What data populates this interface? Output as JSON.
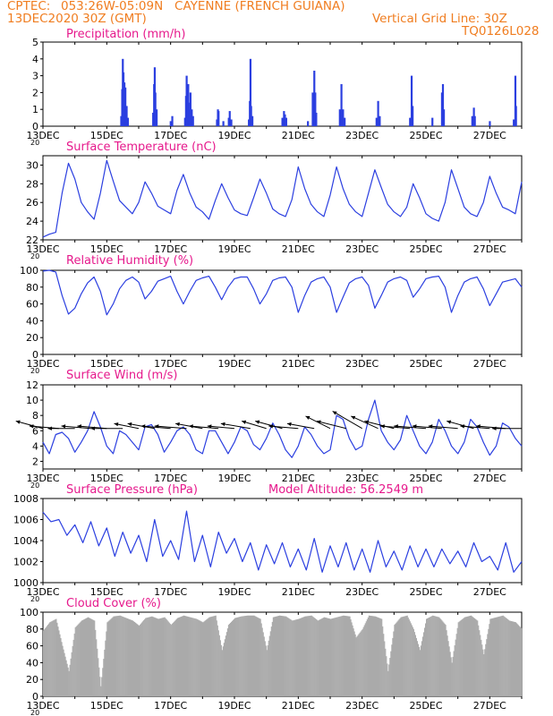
{
  "header": {
    "source": "CPTEC:",
    "location": "053:26W-05:09N   CAYENNE (FRENCH GUIANA)",
    "date": "13DEC2020 30Z (GMT)",
    "grid_note": "Vertical Grid Line: 30Z",
    "code": "TQ0126L028",
    "color": "#f07d20"
  },
  "x_axis": {
    "tick_labels": [
      "13DEC",
      "15DEC",
      "17DEC",
      "19DEC",
      "21DEC",
      "23DEC",
      "25DEC",
      "27DEC"
    ],
    "overflow_label": "20",
    "start_day": 13,
    "end_day": 28
  },
  "colors": {
    "title": "#e6198c",
    "series": "#2b3fe0",
    "cloud": "#aaaaaa"
  },
  "chart_data": [
    {
      "id": "precip",
      "type": "bar",
      "title": "Precipitation (mm/h)",
      "ylim": [
        0,
        5
      ],
      "yticks": [
        0,
        1,
        2,
        3,
        4,
        5
      ],
      "bars": [
        [
          15.45,
          0.6
        ],
        [
          15.48,
          2.2
        ],
        [
          15.5,
          4.0
        ],
        [
          15.52,
          3.2
        ],
        [
          15.55,
          2.6
        ],
        [
          15.58,
          2.3
        ],
        [
          15.62,
          1.2
        ],
        [
          15.66,
          0.5
        ],
        [
          16.45,
          0.8
        ],
        [
          16.48,
          2.5
        ],
        [
          16.5,
          3.5
        ],
        [
          16.52,
          2.0
        ],
        [
          16.56,
          1.0
        ],
        [
          17.0,
          0.3
        ],
        [
          17.05,
          0.6
        ],
        [
          17.45,
          0.5
        ],
        [
          17.48,
          1.8
        ],
        [
          17.5,
          3.0
        ],
        [
          17.52,
          2.2
        ],
        [
          17.55,
          2.5
        ],
        [
          17.58,
          1.4
        ],
        [
          17.62,
          2.0
        ],
        [
          17.66,
          1.0
        ],
        [
          17.7,
          0.6
        ],
        [
          18.45,
          0.4
        ],
        [
          18.48,
          1.0
        ],
        [
          18.5,
          0.9
        ],
        [
          18.65,
          0.3
        ],
        [
          18.82,
          0.5
        ],
        [
          18.85,
          0.9
        ],
        [
          18.9,
          0.4
        ],
        [
          19.45,
          0.4
        ],
        [
          19.48,
          1.5
        ],
        [
          19.5,
          4.0
        ],
        [
          19.52,
          1.2
        ],
        [
          19.56,
          0.6
        ],
        [
          20.5,
          0.5
        ],
        [
          20.55,
          0.9
        ],
        [
          20.58,
          0.7
        ],
        [
          20.62,
          0.5
        ],
        [
          21.3,
          0.3
        ],
        [
          21.45,
          2.0
        ],
        [
          21.5,
          3.3
        ],
        [
          21.53,
          2.0
        ],
        [
          21.56,
          0.8
        ],
        [
          22.3,
          1.0
        ],
        [
          22.35,
          2.5
        ],
        [
          22.4,
          1.0
        ],
        [
          22.45,
          0.5
        ],
        [
          23.45,
          0.5
        ],
        [
          23.5,
          1.5
        ],
        [
          23.55,
          0.6
        ],
        [
          24.5,
          0.5
        ],
        [
          24.55,
          3.0
        ],
        [
          24.58,
          1.2
        ],
        [
          25.2,
          0.5
        ],
        [
          25.5,
          2.0
        ],
        [
          25.53,
          2.5
        ],
        [
          25.56,
          1.0
        ],
        [
          26.45,
          0.6
        ],
        [
          26.5,
          1.1
        ],
        [
          26.53,
          0.6
        ],
        [
          27.0,
          0.3
        ],
        [
          27.75,
          0.4
        ],
        [
          27.8,
          3.0
        ],
        [
          27.82,
          1.2
        ]
      ]
    },
    {
      "id": "temperature",
      "type": "line",
      "title": "Surface Temperature (nC)",
      "ylim": [
        22,
        31
      ],
      "yticks": [
        22,
        24,
        26,
        28,
        30
      ],
      "x": [
        13.0,
        13.2,
        13.4,
        13.6,
        13.8,
        14.0,
        14.2,
        14.4,
        14.6,
        14.8,
        15.0,
        15.2,
        15.4,
        15.6,
        15.8,
        16.0,
        16.2,
        16.4,
        16.6,
        16.8,
        17.0,
        17.2,
        17.4,
        17.6,
        17.8,
        18.0,
        18.2,
        18.4,
        18.6,
        18.8,
        19.0,
        19.2,
        19.4,
        19.6,
        19.8,
        20.0,
        20.2,
        20.4,
        20.6,
        20.8,
        21.0,
        21.2,
        21.4,
        21.6,
        21.8,
        22.0,
        22.2,
        22.4,
        22.6,
        22.8,
        23.0,
        23.2,
        23.4,
        23.6,
        23.8,
        24.0,
        24.2,
        24.4,
        24.6,
        24.8,
        25.0,
        25.2,
        25.4,
        25.6,
        25.8,
        26.0,
        26.2,
        26.4,
        26.6,
        26.8,
        27.0,
        27.2,
        27.4,
        27.6,
        27.8,
        28.0
      ],
      "y": [
        22.3,
        22.6,
        22.8,
        27.0,
        30.2,
        28.5,
        26.0,
        25.0,
        24.2,
        27.0,
        30.5,
        28.3,
        26.2,
        25.5,
        24.8,
        26.0,
        28.2,
        27.0,
        25.6,
        25.2,
        24.8,
        27.3,
        29.0,
        27.0,
        25.5,
        25.0,
        24.2,
        26.2,
        28.0,
        26.5,
        25.2,
        24.8,
        24.6,
        26.5,
        28.5,
        27.0,
        25.3,
        24.8,
        24.5,
        26.3,
        29.8,
        27.5,
        25.8,
        25.0,
        24.5,
        26.8,
        29.8,
        27.5,
        25.8,
        25.0,
        24.5,
        27.0,
        29.5,
        27.6,
        25.8,
        25.0,
        24.5,
        25.5,
        28.0,
        26.5,
        24.8,
        24.3,
        24.0,
        26.0,
        29.5,
        27.5,
        25.5,
        24.8,
        24.5,
        26.0,
        28.8,
        27.0,
        25.5,
        25.2,
        24.8,
        28.2
      ]
    },
    {
      "id": "humidity",
      "type": "line",
      "title": "Relative Humidity (%)",
      "ylim": [
        0,
        100
      ],
      "yticks": [
        0,
        20,
        40,
        60,
        80,
        100
      ],
      "x": [
        13.0,
        13.2,
        13.4,
        13.6,
        13.8,
        14.0,
        14.2,
        14.4,
        14.6,
        14.8,
        15.0,
        15.2,
        15.4,
        15.6,
        15.8,
        16.0,
        16.2,
        16.4,
        16.6,
        16.8,
        17.0,
        17.2,
        17.4,
        17.6,
        17.8,
        18.0,
        18.2,
        18.4,
        18.6,
        18.8,
        19.0,
        19.2,
        19.4,
        19.6,
        19.8,
        20.0,
        20.2,
        20.4,
        20.6,
        20.8,
        21.0,
        21.2,
        21.4,
        21.6,
        21.8,
        22.0,
        22.2,
        22.4,
        22.6,
        22.8,
        23.0,
        23.2,
        23.4,
        23.6,
        23.8,
        24.0,
        24.2,
        24.4,
        24.6,
        24.8,
        25.0,
        25.2,
        25.4,
        25.6,
        25.8,
        26.0,
        26.2,
        26.4,
        26.6,
        26.8,
        27.0,
        27.2,
        27.4,
        27.6,
        27.8,
        28.0
      ],
      "y": [
        99,
        100,
        98,
        70,
        48,
        55,
        72,
        85,
        92,
        75,
        47,
        60,
        78,
        88,
        92,
        86,
        66,
        75,
        87,
        90,
        93,
        75,
        60,
        75,
        88,
        91,
        93,
        80,
        65,
        80,
        90,
        92,
        92,
        78,
        60,
        72,
        88,
        91,
        92,
        80,
        50,
        70,
        86,
        90,
        92,
        80,
        50,
        68,
        85,
        90,
        92,
        82,
        55,
        70,
        86,
        90,
        92,
        88,
        68,
        78,
        90,
        92,
        93,
        80,
        50,
        70,
        86,
        90,
        92,
        78,
        58,
        72,
        86,
        88,
        90,
        80
      ]
    },
    {
      "id": "wind",
      "type": "line",
      "title": "Surface Wind (m/s)",
      "ylim": [
        1,
        12
      ],
      "yticks": [
        2,
        4,
        6,
        8,
        10,
        12
      ],
      "x": [
        13.0,
        13.2,
        13.4,
        13.6,
        13.8,
        14.0,
        14.2,
        14.4,
        14.6,
        14.8,
        15.0,
        15.2,
        15.4,
        15.6,
        15.8,
        16.0,
        16.2,
        16.4,
        16.6,
        16.8,
        17.0,
        17.2,
        17.4,
        17.6,
        17.8,
        18.0,
        18.2,
        18.4,
        18.6,
        18.8,
        19.0,
        19.2,
        19.4,
        19.6,
        19.8,
        20.0,
        20.2,
        20.4,
        20.6,
        20.8,
        21.0,
        21.2,
        21.4,
        21.6,
        21.8,
        22.0,
        22.2,
        22.4,
        22.6,
        22.8,
        23.0,
        23.2,
        23.4,
        23.6,
        23.8,
        24.0,
        24.2,
        24.4,
        24.6,
        24.8,
        25.0,
        25.2,
        25.4,
        25.6,
        25.8,
        26.0,
        26.2,
        26.4,
        26.6,
        26.8,
        27.0,
        27.2,
        27.4,
        27.6,
        27.8,
        28.0
      ],
      "y": [
        4.5,
        3.0,
        5.5,
        5.8,
        5.0,
        3.2,
        4.5,
        6.0,
        8.5,
        6.5,
        4.0,
        3.0,
        6.0,
        5.5,
        4.5,
        3.5,
        6.5,
        6.8,
        5.5,
        3.2,
        4.5,
        6.0,
        6.5,
        5.5,
        3.5,
        3.0,
        6.0,
        6.0,
        4.5,
        3.0,
        4.5,
        6.5,
        6.0,
        4.2,
        3.5,
        5.0,
        7.0,
        5.5,
        3.5,
        2.5,
        4.0,
        6.5,
        5.5,
        4.0,
        3.0,
        3.5,
        8.0,
        7.5,
        5.0,
        3.5,
        4.0,
        7.5,
        10.0,
        6.0,
        4.5,
        3.5,
        4.8,
        8.0,
        6.0,
        4.0,
        3.0,
        4.5,
        7.5,
        6.0,
        4.0,
        3.0,
        4.5,
        7.5,
        6.5,
        4.5,
        2.8,
        4.0,
        7.0,
        6.5,
        5.0,
        4.0
      ]
    },
    {
      "id": "pressure",
      "type": "line",
      "title": "Surface Pressure (hPa)",
      "annotation": "Model Altitude: 56.2549 m",
      "ylim": [
        1000,
        1008
      ],
      "yticks": [
        1000,
        1002,
        1004,
        1006,
        1008
      ],
      "x": [
        13.0,
        13.25,
        13.5,
        13.75,
        14.0,
        14.25,
        14.5,
        14.75,
        15.0,
        15.25,
        15.5,
        15.75,
        16.0,
        16.25,
        16.5,
        16.75,
        17.0,
        17.25,
        17.5,
        17.75,
        18.0,
        18.25,
        18.5,
        18.75,
        19.0,
        19.25,
        19.5,
        19.75,
        20.0,
        20.25,
        20.5,
        20.75,
        21.0,
        21.25,
        21.5,
        21.75,
        22.0,
        22.25,
        22.5,
        22.75,
        23.0,
        23.25,
        23.5,
        23.75,
        24.0,
        24.25,
        24.5,
        24.75,
        25.0,
        25.25,
        25.5,
        25.75,
        26.0,
        26.25,
        26.5,
        26.75,
        27.0,
        27.25,
        27.5,
        27.75,
        28.0
      ],
      "y": [
        1006.7,
        1005.8,
        1006.0,
        1004.5,
        1005.5,
        1003.8,
        1005.8,
        1003.5,
        1005.2,
        1002.5,
        1004.8,
        1002.8,
        1004.5,
        1002.0,
        1006.0,
        1002.5,
        1004.0,
        1002.2,
        1006.8,
        1002.0,
        1004.5,
        1001.5,
        1004.8,
        1002.8,
        1004.2,
        1002.0,
        1003.8,
        1001.2,
        1003.6,
        1001.8,
        1003.8,
        1001.5,
        1003.2,
        1001.2,
        1004.2,
        1001.0,
        1003.5,
        1001.5,
        1003.8,
        1001.2,
        1003.2,
        1001.0,
        1004.0,
        1001.5,
        1003.0,
        1001.2,
        1003.5,
        1001.5,
        1003.2,
        1001.5,
        1003.2,
        1001.8,
        1003.0,
        1001.5,
        1003.8,
        1002.0,
        1002.5,
        1001.2,
        1003.8,
        1001.0,
        1002.0
      ]
    },
    {
      "id": "cloud",
      "type": "area",
      "title": "Cloud Cover (%)",
      "ylim": [
        0,
        100
      ],
      "yticks": [
        0,
        20,
        40,
        60,
        80,
        100
      ],
      "x": [
        13.0,
        13.2,
        13.4,
        13.6,
        13.8,
        14.0,
        14.2,
        14.4,
        14.6,
        14.8,
        15.0,
        15.2,
        15.4,
        15.6,
        15.8,
        16.0,
        16.2,
        16.4,
        16.6,
        16.8,
        17.0,
        17.2,
        17.4,
        17.6,
        17.8,
        18.0,
        18.2,
        18.4,
        18.6,
        18.8,
        19.0,
        19.2,
        19.4,
        19.6,
        19.8,
        20.0,
        20.2,
        20.4,
        20.6,
        20.8,
        21.0,
        21.2,
        21.4,
        21.6,
        21.8,
        22.0,
        22.2,
        22.4,
        22.6,
        22.8,
        23.0,
        23.2,
        23.4,
        23.6,
        23.8,
        24.0,
        24.2,
        24.4,
        24.6,
        24.8,
        25.0,
        25.2,
        25.4,
        25.6,
        25.8,
        26.0,
        26.2,
        26.4,
        26.6,
        26.8,
        27.0,
        27.2,
        27.4,
        27.6,
        27.8,
        28.0
      ],
      "y": [
        78,
        88,
        92,
        60,
        30,
        82,
        90,
        94,
        90,
        12,
        88,
        95,
        96,
        93,
        90,
        84,
        93,
        95,
        92,
        94,
        85,
        93,
        96,
        94,
        92,
        88,
        94,
        96,
        55,
        85,
        93,
        95,
        96,
        96,
        92,
        55,
        94,
        96,
        95,
        90,
        92,
        95,
        96,
        90,
        94,
        92,
        94,
        96,
        95,
        70,
        80,
        96,
        95,
        92,
        30,
        85,
        94,
        96,
        80,
        55,
        92,
        96,
        94,
        85,
        40,
        88,
        94,
        96,
        90,
        50,
        92,
        94,
        96,
        90,
        88,
        80
      ]
    },
    {
      "id": "wind_vectors",
      "type": "vector",
      "level": 6.3,
      "times": [
        13.0,
        13.5,
        14.0,
        14.5,
        15.0,
        15.5,
        16.0,
        16.5,
        17.0,
        17.5,
        18.0,
        18.5,
        19.0,
        19.5,
        20.0,
        20.5,
        21.0,
        21.5,
        22.0,
        22.5,
        23.0,
        23.5,
        24.0,
        24.5,
        25.0,
        25.5,
        26.0,
        26.5,
        27.0,
        27.5,
        28.0
      ],
      "u": [
        -5.5,
        -6.0,
        -5.5,
        -6.0,
        -6.0,
        -6.5,
        -5.0,
        -5.5,
        -6.0,
        -6.5,
        -5.5,
        -6.0,
        -5.5,
        -6.0,
        -5.0,
        -5.5,
        -6.0,
        -5.5,
        -5.0,
        -6.0,
        -6.0,
        -5.5,
        -6.0,
        -6.0,
        -6.5,
        -6.0,
        -6.0,
        -5.5,
        -6.0,
        -6.0,
        -6.0
      ],
      "v": [
        1.5,
        0.5,
        0.0,
        0.5,
        0.5,
        0.0,
        1.0,
        1.0,
        0.5,
        0.5,
        1.0,
        0.5,
        0.5,
        1.0,
        1.5,
        1.5,
        0.5,
        1.0,
        2.5,
        1.5,
        3.5,
        2.5,
        1.5,
        0.5,
        0.5,
        0.5,
        0.5,
        1.5,
        0.5,
        0.5,
        0.0
      ]
    }
  ]
}
